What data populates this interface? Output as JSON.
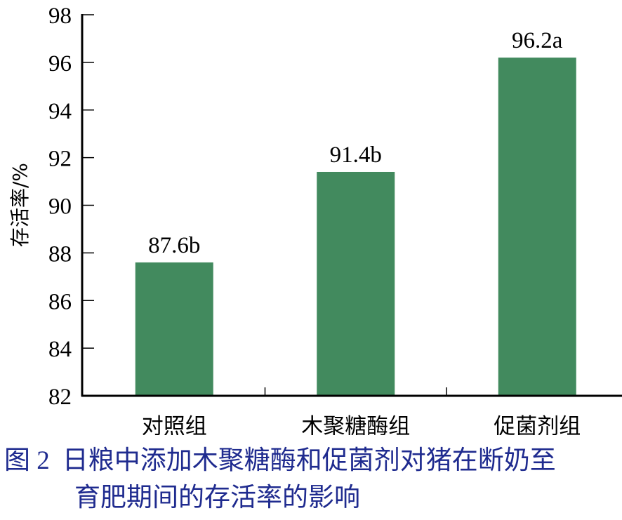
{
  "chart_data": {
    "type": "bar",
    "title": "",
    "xlabel": "",
    "ylabel": "存活率/%",
    "ylim": [
      82,
      98
    ],
    "yticks": [
      82,
      84,
      86,
      88,
      90,
      92,
      94,
      96,
      98
    ],
    "grid": false,
    "legend": null,
    "categories": [
      "对照组",
      "木聚糖酶组",
      "促菌剂组"
    ],
    "values": [
      87.6,
      91.4,
      96.2
    ],
    "data_labels": [
      "87.6b",
      "91.4b",
      "96.2a"
    ],
    "bar_color": "#428a5e"
  },
  "caption": {
    "figure_number": "图 2",
    "line1": "日粮中添加木聚糖酶和促菌剂对猪在断奶至",
    "line2": "育肥期间的存活率的影响",
    "color": "#1f2b8f"
  }
}
